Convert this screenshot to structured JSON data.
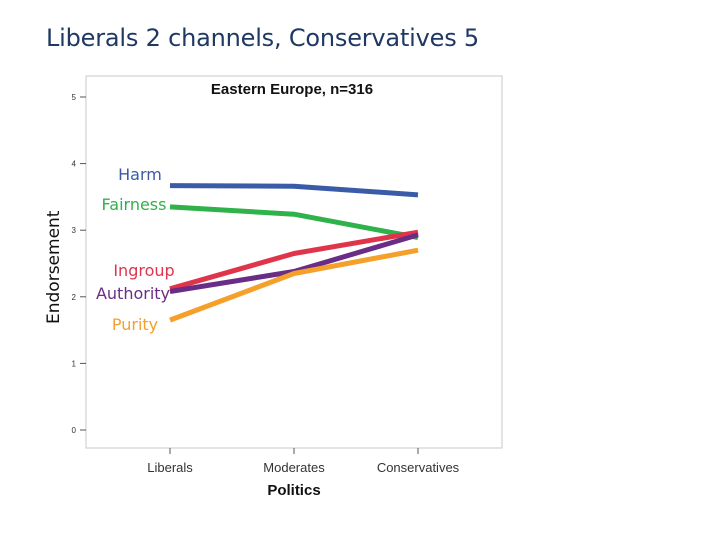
{
  "slide_title": "Liberals 2 channels, Conservatives 5",
  "chart_data": {
    "type": "line",
    "title": "Eastern Europe, n=316",
    "xlabel": "Politics",
    "ylabel": "Endorsement",
    "categories": [
      "Liberals",
      "Moderates",
      "Conservatives"
    ],
    "ylim": [
      0,
      5
    ],
    "yticks": [
      "0",
      "1",
      "2",
      "3",
      "4",
      "5"
    ],
    "grid": false,
    "legend": "inline labels at left of lines",
    "series": [
      {
        "name": "Harm",
        "values": [
          3.67,
          3.66,
          3.53
        ],
        "color": "#3a5ba8"
      },
      {
        "name": "Fairness",
        "values": [
          3.35,
          3.24,
          2.89
        ],
        "color": "#2fb24a"
      },
      {
        "name": "Ingroup",
        "values": [
          2.12,
          2.65,
          2.97
        ],
        "color": "#e0344a"
      },
      {
        "name": "Authority",
        "values": [
          2.08,
          2.38,
          2.93
        ],
        "color": "#6a2d86"
      },
      {
        "name": "Purity",
        "values": [
          1.65,
          2.35,
          2.7
        ],
        "color": "#f5a02a"
      }
    ]
  }
}
